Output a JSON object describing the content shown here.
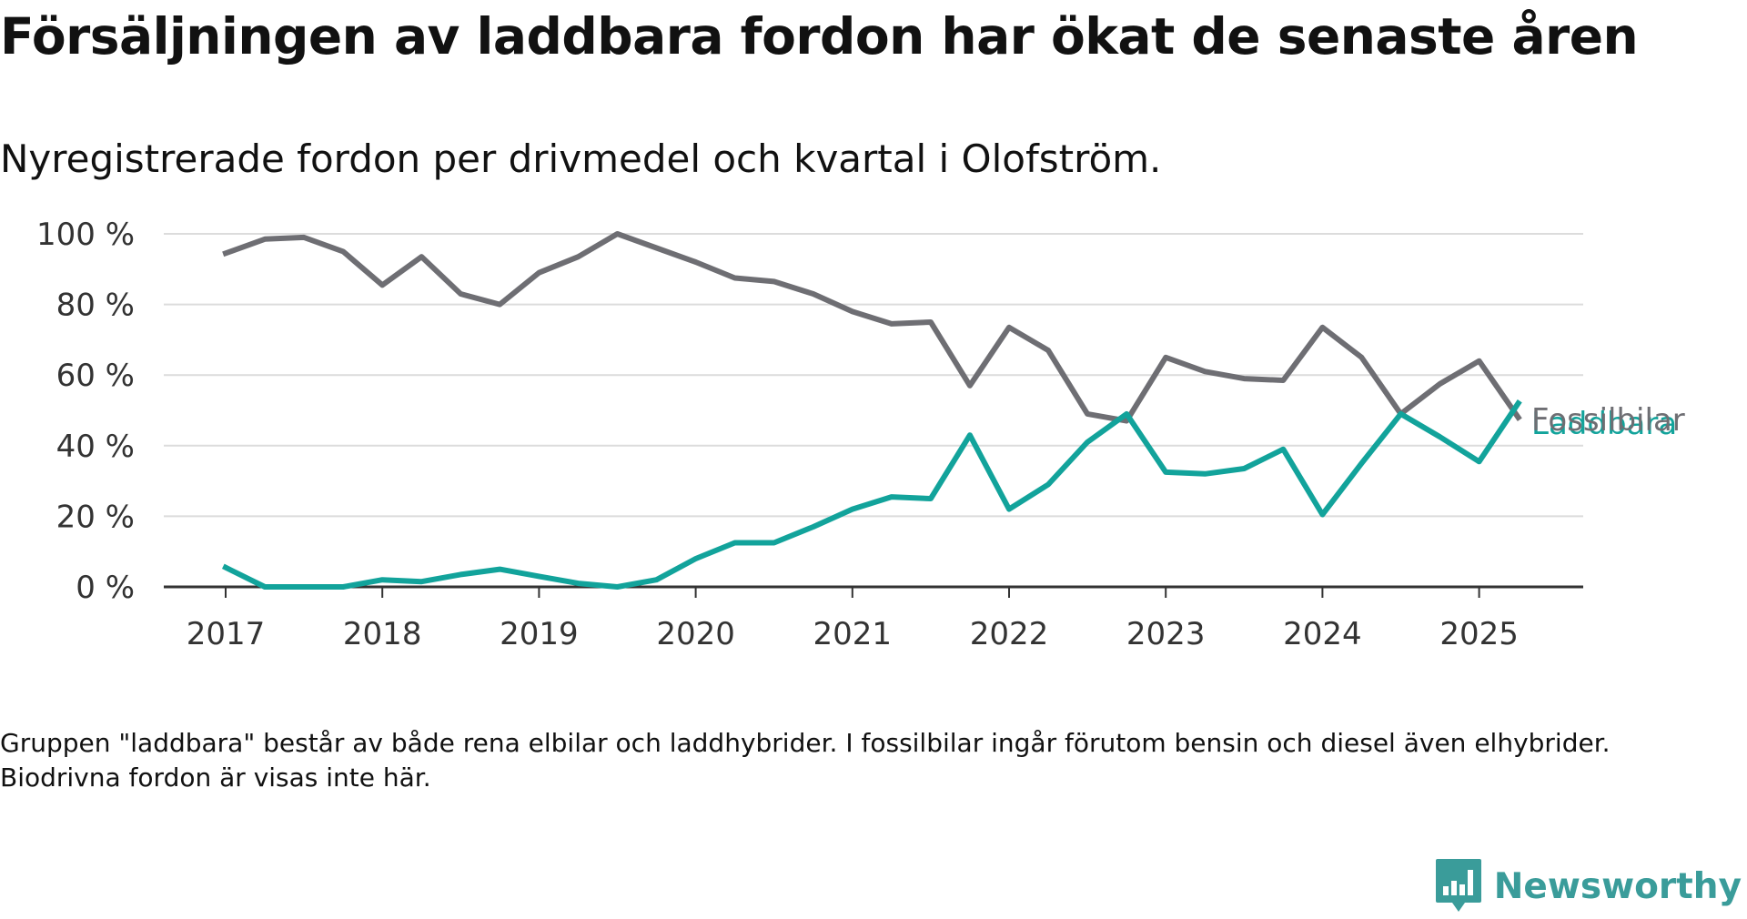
{
  "header": {
    "title": "Försäljningen av laddbara fordon har ökat de senaste åren",
    "subtitle": "Nyregistrerade fordon per drivmedel och kvartal i Olofström."
  },
  "footnote": "Gruppen \"laddbara\" består av både rena elbilar och laddhybrider. I fossilbilar ingår förutom bensin och diesel även elhybrider. Biodrivna fordon är visas inte här.",
  "brand": {
    "name": "Newsworthy",
    "color": "#3a9c9a"
  },
  "chart_data": {
    "type": "line",
    "x": [
      "2017-Q1",
      "2017-Q2",
      "2017-Q3",
      "2017-Q4",
      "2018-Q1",
      "2018-Q2",
      "2018-Q3",
      "2018-Q4",
      "2019-Q1",
      "2019-Q2",
      "2019-Q3",
      "2019-Q4",
      "2020-Q1",
      "2020-Q2",
      "2020-Q3",
      "2020-Q4",
      "2021-Q1",
      "2021-Q2",
      "2021-Q3",
      "2021-Q4",
      "2022-Q1",
      "2022-Q2",
      "2022-Q3",
      "2022-Q4",
      "2023-Q1",
      "2023-Q2",
      "2023-Q3",
      "2023-Q4",
      "2024-Q1",
      "2024-Q2",
      "2024-Q3",
      "2024-Q4",
      "2025-Q1",
      "2025-Q2"
    ],
    "x_ticks": [
      "2017",
      "2018",
      "2019",
      "2020",
      "2021",
      "2022",
      "2023",
      "2024",
      "2025"
    ],
    "y_ticks": [
      0,
      20,
      40,
      60,
      80,
      100
    ],
    "y_tick_labels": [
      "0 %",
      "20 %",
      "40 %",
      "60 %",
      "80 %",
      "100 %"
    ],
    "ylim": [
      0,
      100
    ],
    "grid": true,
    "series": [
      {
        "name": "Fossilbilar",
        "color": "#6e6e73",
        "values": [
          94.5,
          98.5,
          99,
          95,
          85.5,
          93.5,
          83,
          80,
          89,
          93.5,
          100,
          96,
          92,
          87.5,
          86.5,
          83,
          78,
          74.5,
          75,
          57,
          73.5,
          67,
          49,
          47,
          65,
          61,
          59,
          58.5,
          73.5,
          65,
          49,
          57.5,
          64,
          48
        ]
      },
      {
        "name": "Laddbara",
        "color": "#12a39b",
        "values": [
          5.5,
          0,
          0,
          0,
          2,
          1.5,
          3.5,
          5,
          3,
          1,
          0,
          2,
          8,
          12.5,
          12.5,
          17,
          22,
          25.5,
          25,
          43,
          22,
          29,
          41,
          49,
          32.5,
          32,
          33.5,
          39,
          20.5,
          35,
          49,
          42.5,
          35.5,
          52
        ]
      }
    ]
  }
}
